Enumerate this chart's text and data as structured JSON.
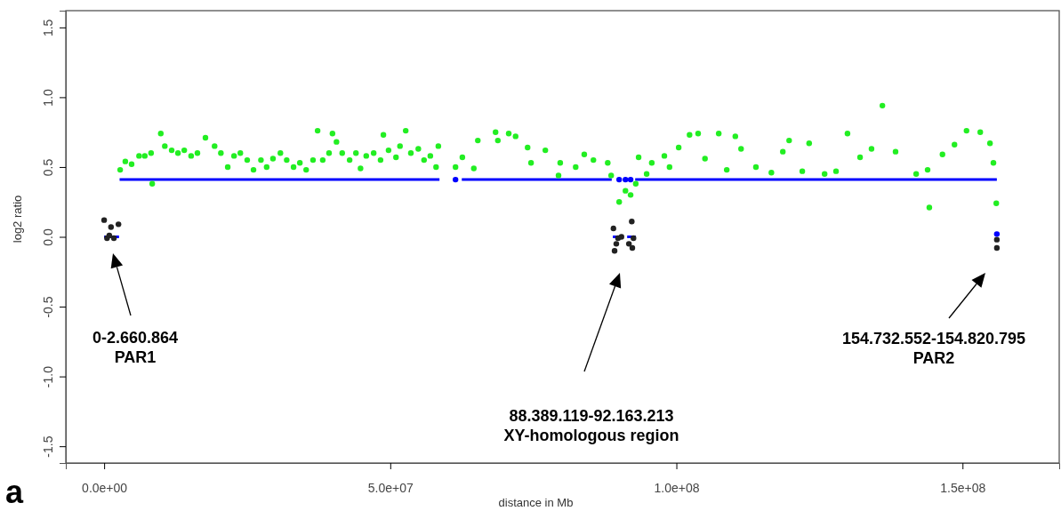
{
  "chart_data": {
    "type": "scatter",
    "xlabel": "distance in Mb",
    "ylabel": "log2 ratio",
    "xlim": [
      -6700000,
      166900000
    ],
    "ylim": [
      -1.62,
      1.62
    ],
    "xticks": [
      {
        "value": 0,
        "label": "0.0e+00"
      },
      {
        "value": 50000000,
        "label": "5.0e+07"
      },
      {
        "value": 100000000,
        "label": "1.0e+08"
      },
      {
        "value": 150000000,
        "label": "1.5e+08"
      }
    ],
    "yticks": [
      -1.5,
      {
        "value": -1,
        "label": "-1.0"
      },
      -0.5,
      {
        "value": 0,
        "label": "0.0"
      },
      0.5,
      {
        "value": 1,
        "label": "1.0"
      },
      1.5
    ],
    "grid": false,
    "marker": "circle",
    "series": [
      {
        "color": "#22ee22",
        "x": [
          2800000,
          3700000,
          4800000,
          6100000,
          7100000,
          8200000,
          8400000,
          9900000,
          10600000,
          11800000,
          12900000,
          14000000,
          15200000,
          16300000,
          17700000,
          19300000,
          20400000,
          21600000,
          22700000,
          23800000,
          25000000,
          26100000,
          27400000,
          28400000,
          29500000,
          30800000,
          31900000,
          33100000,
          34200000,
          35300000,
          36500000,
          37300000,
          38200000,
          39300000,
          39900000,
          40600000,
          41600000,
          42900000,
          44000000,
          44800000,
          45800000,
          47100000,
          48300000,
          48800000,
          49700000,
          51000000,
          51700000,
          52700000,
          53600000,
          54900000,
          55900000,
          57000000,
          58000000,
          58400000,
          61400000,
          62600000,
          64600000,
          65300000,
          68400000,
          68800000,
          70700000,
          71900000,
          74000000,
          74600000,
          77100000,
          79400000,
          79700000,
          82400000,
          83900000,
          85500000,
          88000000,
          88600000,
          90000000,
          91100000,
          92000000,
          92900000,
          93400000,
          94800000,
          95700000,
          97900000,
          98800000,
          100400000,
          102300000,
          103800000,
          105000000,
          107400000,
          108800000,
          110300000,
          111300000,
          113900000,
          116600000,
          118600000,
          119700000,
          122000000,
          123200000,
          125900000,
          127900000,
          129900000,
          132100000,
          134100000,
          136000000,
          138300000,
          141900000,
          143900000,
          144200000,
          146500000,
          148600000,
          150700000,
          153100000,
          154800000,
          155400000,
          155900000
        ],
        "values": [
          0.48,
          0.54,
          0.52,
          0.58,
          0.58,
          0.6,
          0.38,
          0.74,
          0.65,
          0.62,
          0.6,
          0.62,
          0.58,
          0.6,
          0.71,
          0.65,
          0.6,
          0.5,
          0.58,
          0.6,
          0.55,
          0.48,
          0.55,
          0.5,
          0.56,
          0.6,
          0.55,
          0.5,
          0.53,
          0.48,
          0.55,
          0.76,
          0.55,
          0.6,
          0.74,
          0.68,
          0.6,
          0.55,
          0.6,
          0.49,
          0.58,
          0.6,
          0.55,
          0.73,
          0.62,
          0.57,
          0.65,
          0.76,
          0.6,
          0.63,
          0.55,
          0.58,
          0.5,
          0.65,
          0.5,
          0.57,
          0.49,
          0.69,
          0.75,
          0.69,
          0.74,
          0.72,
          0.64,
          0.53,
          0.62,
          0.44,
          0.53,
          0.5,
          0.59,
          0.55,
          0.53,
          0.44,
          0.25,
          0.33,
          0.3,
          0.38,
          0.57,
          0.45,
          0.53,
          0.58,
          0.5,
          0.64,
          0.73,
          0.74,
          0.56,
          0.74,
          0.48,
          0.72,
          0.63,
          0.5,
          0.46,
          0.61,
          0.69,
          0.47,
          0.67,
          0.45,
          0.47,
          0.74,
          0.57,
          0.63,
          0.94,
          0.61,
          0.45,
          0.48,
          0.21,
          0.59,
          0.66,
          0.76,
          0.75,
          0.67,
          0.53,
          0.24
        ]
      },
      {
        "color": "#222222",
        "x": [
          0,
          500000,
          900000,
          1200000,
          1700000,
          2500000,
          89000000,
          89200000,
          89500000,
          89800000,
          90400000,
          91700000,
          92200000,
          92300000,
          92500000,
          156000000,
          156000000
        ],
        "values": [
          0.12,
          -0.01,
          0.01,
          0.07,
          -0.01,
          0.09,
          0.06,
          -0.1,
          -0.05,
          -0.01,
          0,
          -0.05,
          0.11,
          -0.08,
          -0.01,
          -0.02,
          -0.08
        ]
      },
      {
        "type": "line",
        "marker": "none",
        "color": "#0000ff",
        "x": [
          2700000,
          58600000,
          null,
          62500000,
          88700000,
          null,
          92800000,
          156000000
        ],
        "values": [
          0.41,
          0.41,
          null,
          0.41,
          0.41,
          null,
          0.41,
          0.41
        ]
      },
      {
        "type": "line",
        "marker": "none",
        "color": "#0000ff",
        "x": [
          0,
          2600000,
          null,
          88900000,
          90700000,
          null,
          91400000,
          92900000
        ],
        "values": [
          0,
          0,
          null,
          0,
          0,
          null,
          0,
          0
        ]
      },
      {
        "color": "#0000ff",
        "x": [
          61400000,
          90000000,
          91100000,
          92000000,
          156000000
        ],
        "values": [
          0.41,
          0.41,
          0.41,
          0.41,
          0.02
        ]
      }
    ],
    "annotations": [
      "0-2.660.864\nPAR1",
      "88.389.119-92.163.213\nXY-homologous region",
      "154.732.552-154.820.795\nPAR2",
      "a"
    ]
  }
}
